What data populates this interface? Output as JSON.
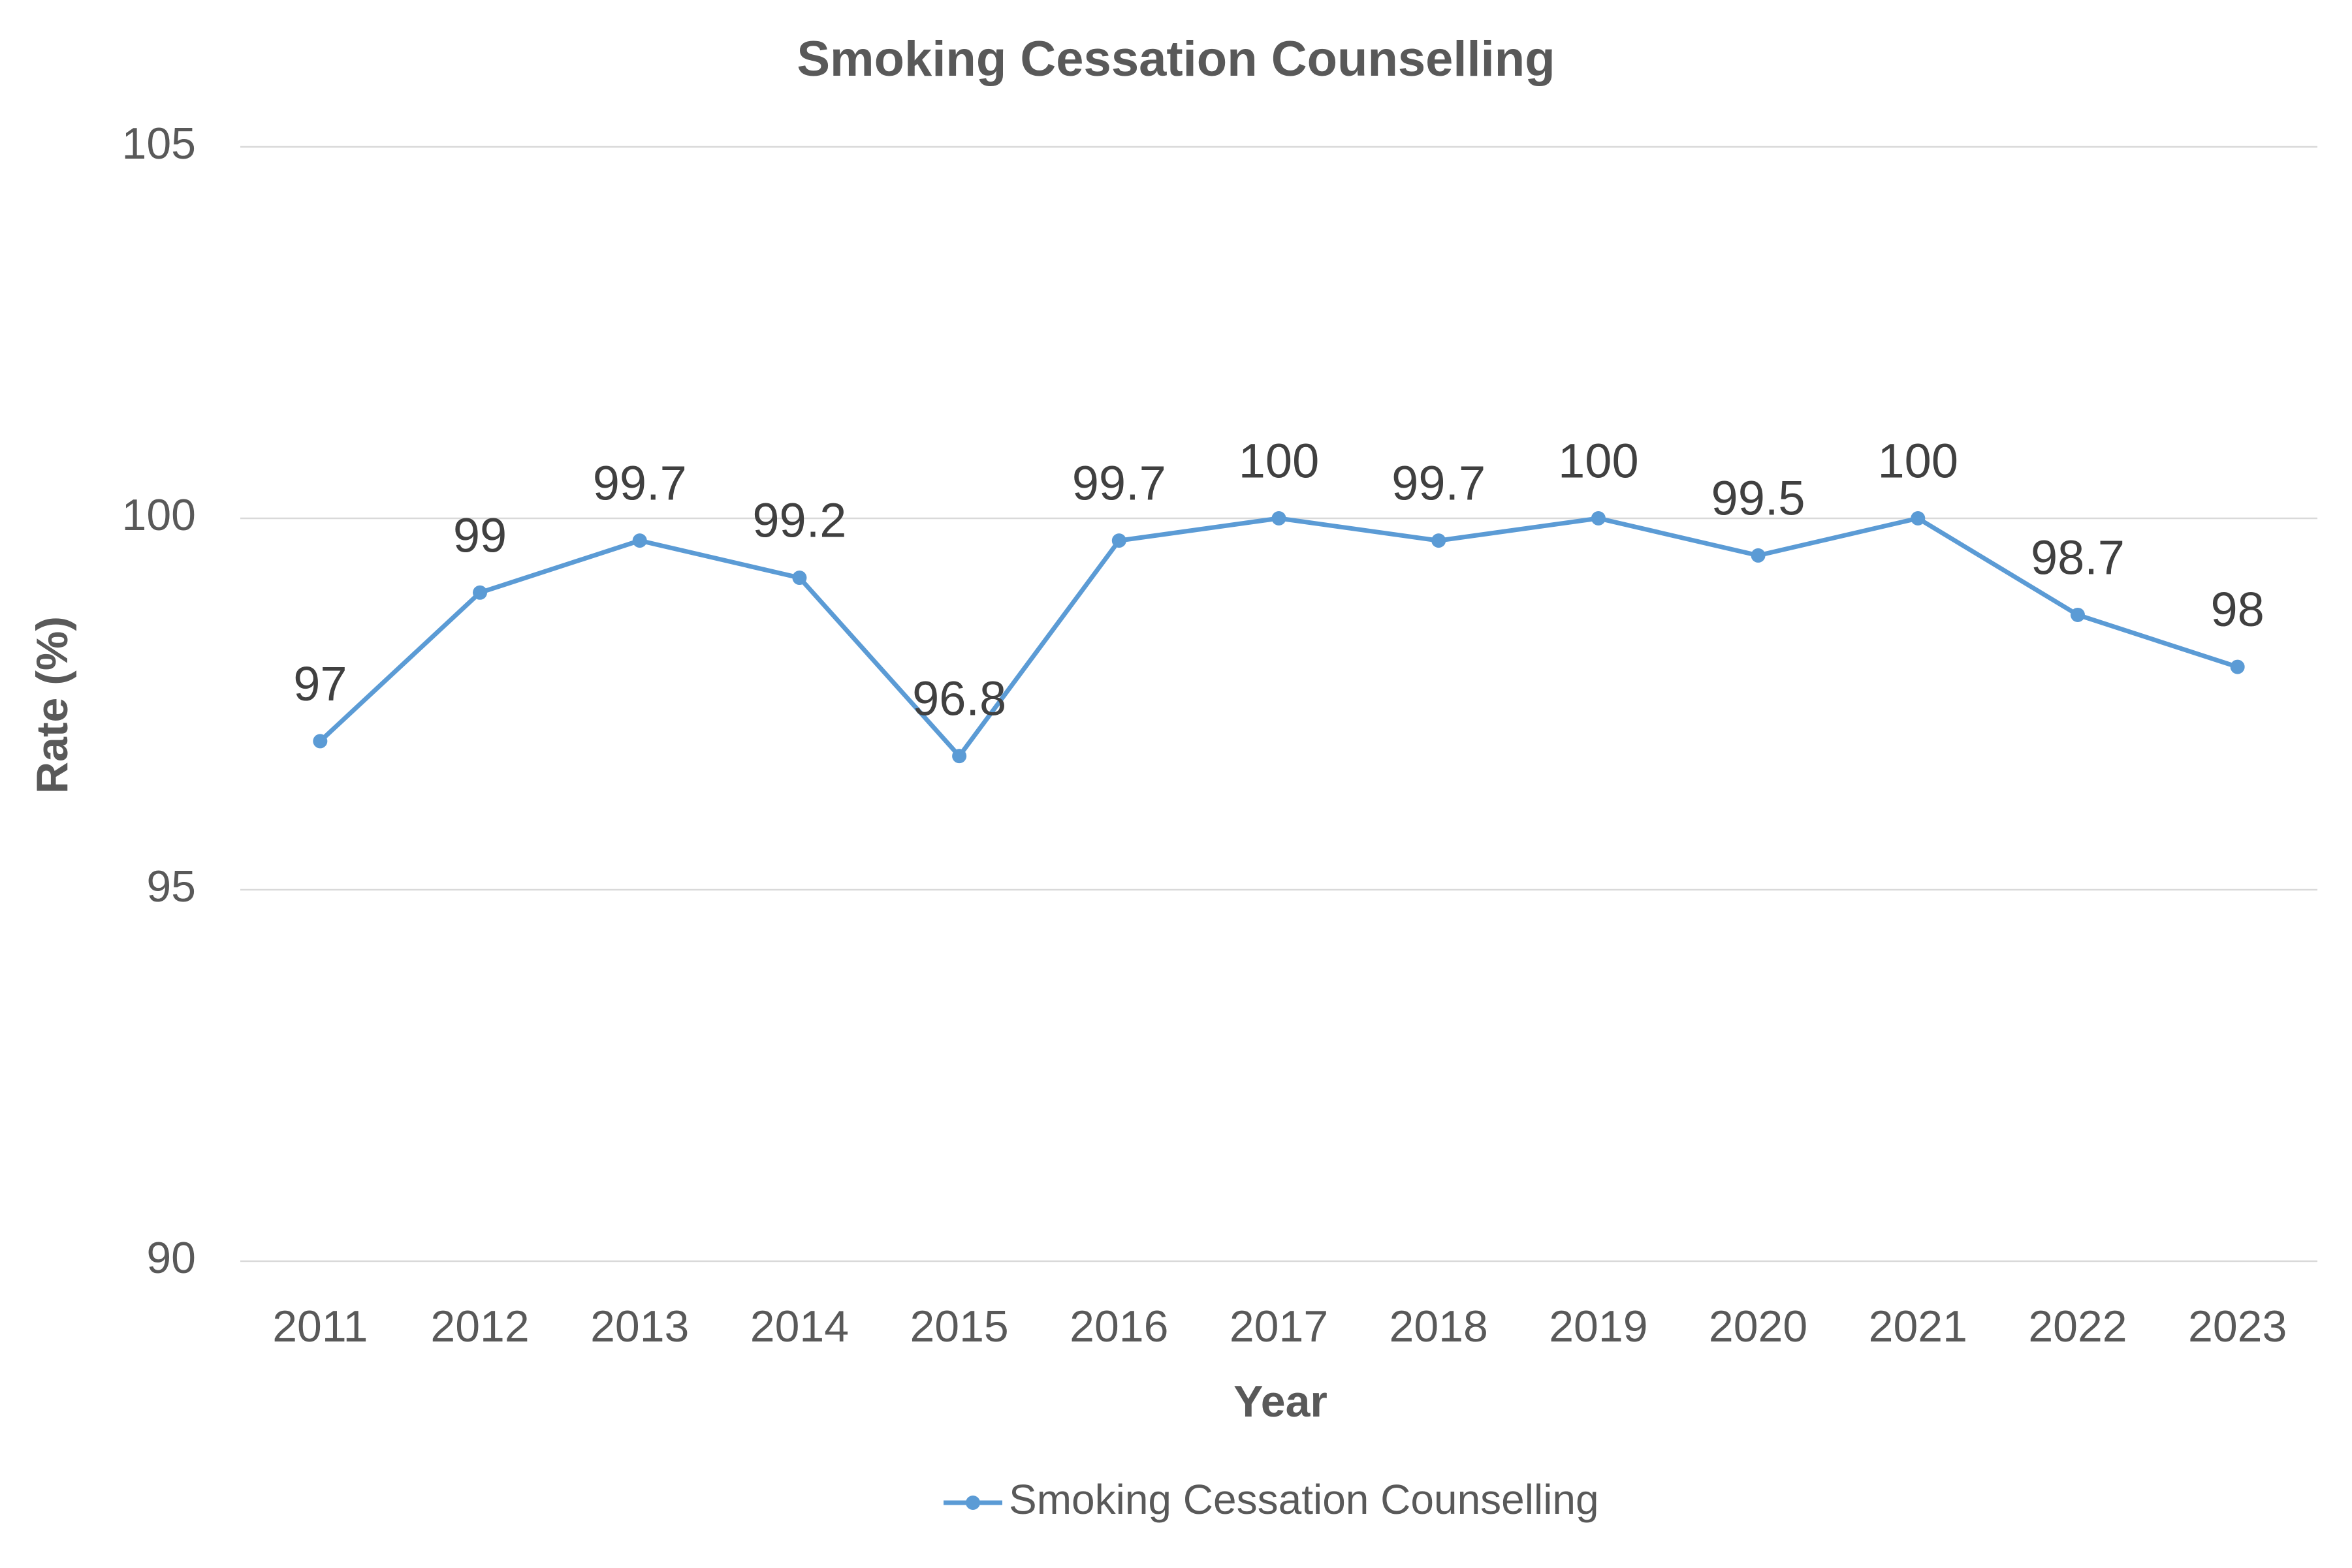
{
  "chart_data": {
    "type": "line",
    "title": "Smoking Cessation Counselling",
    "x_label": "Year",
    "y_label": "Rate (%)",
    "categories": [
      "2011",
      "2012",
      "2013",
      "2014",
      "2015",
      "2016",
      "2017",
      "2018",
      "2019",
      "2020",
      "2021",
      "2022",
      "2023"
    ],
    "series": [
      {
        "name": "Smoking Cessation Counselling",
        "color": "#5b9bd5",
        "values": [
          97,
          99,
          99.7,
          99.2,
          96.8,
          99.7,
          100,
          99.7,
          100,
          99.5,
          100,
          98.7,
          98
        ]
      }
    ],
    "ylim": [
      90,
      105
    ],
    "yticks": [
      90,
      95,
      100,
      105
    ],
    "grid": true,
    "legend": "bottom",
    "data_labels": true
  }
}
